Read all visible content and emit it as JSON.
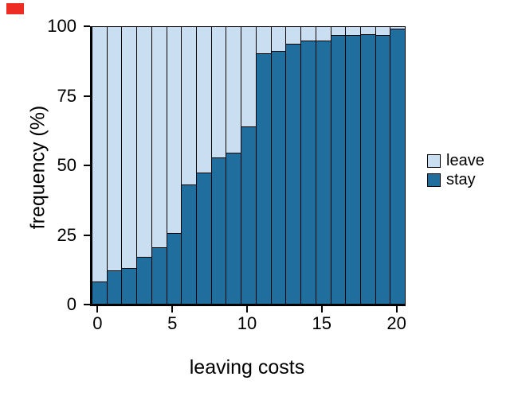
{
  "page": {
    "background": "#ffffff"
  },
  "corner_marker": {
    "color": "#ed2c24"
  },
  "chart_data": {
    "type": "bar",
    "stacked": true,
    "percent": true,
    "title": "",
    "xlabel": "leaving costs",
    "ylabel": "frequency (%)",
    "x": [
      0,
      1,
      2,
      3,
      4,
      5,
      6,
      7,
      8,
      9,
      10,
      11,
      12,
      13,
      14,
      15,
      16,
      17,
      18,
      19,
      20
    ],
    "x_ticks": [
      0,
      5,
      10,
      15,
      20
    ],
    "y_ticks": [
      0,
      25,
      50,
      75,
      100
    ],
    "ylim": [
      0,
      100
    ],
    "grid": false,
    "legend_position": "right",
    "legend": [
      "leave",
      "stay"
    ],
    "series": [
      {
        "name": "leave",
        "color": "#c9def0",
        "values": [
          92,
          88,
          87,
          83,
          79.5,
          74.5,
          57,
          52.5,
          47,
          45.5,
          36,
          9.5,
          8.5,
          6,
          5,
          5,
          3,
          3,
          2.5,
          3,
          0.5
        ]
      },
      {
        "name": "stay",
        "color": "#1f6e9e",
        "values": [
          8,
          12,
          13,
          17,
          20.5,
          25.5,
          43,
          47.5,
          53,
          54.5,
          64,
          90.5,
          91.5,
          94,
          95,
          95,
          97,
          97,
          97.5,
          97,
          99.5
        ]
      }
    ]
  }
}
